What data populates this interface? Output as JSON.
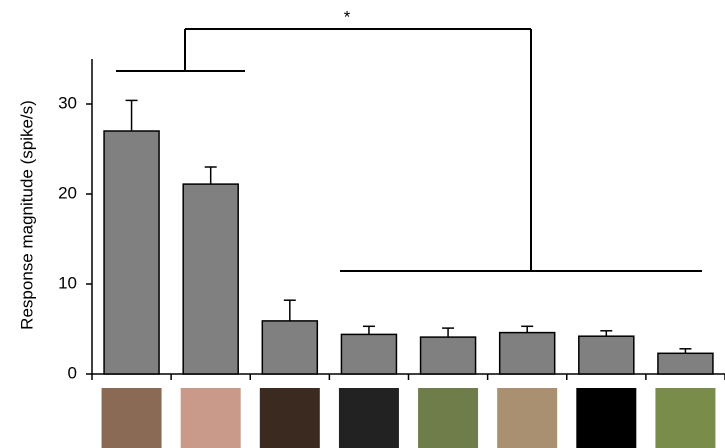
{
  "chart_data": {
    "type": "bar",
    "ylabel": "Response magnitude (spike/s)",
    "annotation": "*",
    "categories": [
      null,
      null,
      null,
      null,
      null,
      null,
      null,
      null
    ],
    "values": [
      27,
      21.1,
      5.9,
      4.4,
      4.1,
      4.6,
      4.2,
      2.3
    ],
    "errors": [
      3.4,
      1.9,
      2.3,
      0.9,
      1.0,
      0.7,
      0.6,
      0.5
    ],
    "color": "#808080",
    "ylim": [
      0,
      35
    ],
    "yticks": [
      0,
      10,
      20,
      30
    ],
    "grid": false
  }
}
